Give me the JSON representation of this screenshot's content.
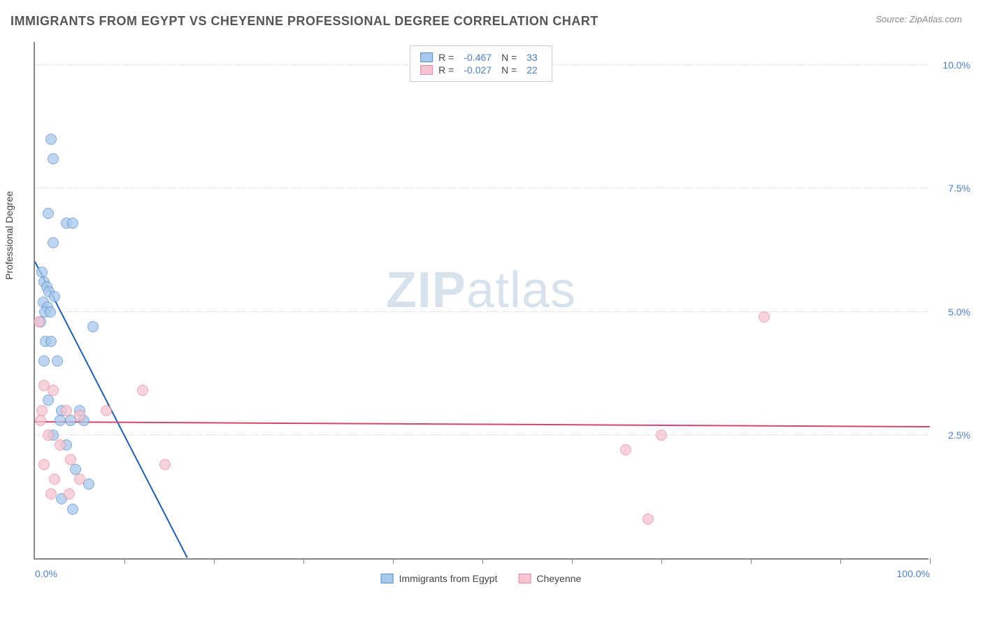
{
  "header": {
    "title": "IMMIGRANTS FROM EGYPT VS CHEYENNE PROFESSIONAL DEGREE CORRELATION CHART",
    "source": "Source: ZipAtlas.com"
  },
  "watermark": {
    "part1": "ZIP",
    "part2": "atlas"
  },
  "chart": {
    "type": "scatter",
    "y_axis_label": "Professional Degree",
    "xlim": [
      0,
      100
    ],
    "ylim": [
      0,
      10.5
    ],
    "x_min_label": "0.0%",
    "x_max_label": "100.0%",
    "y_ticks": [
      {
        "value": 2.5,
        "label": "2.5%"
      },
      {
        "value": 5.0,
        "label": "5.0%"
      },
      {
        "value": 7.5,
        "label": "7.5%"
      },
      {
        "value": 10.0,
        "label": "10.0%"
      }
    ],
    "x_tick_positions": [
      10,
      20,
      30,
      40,
      50,
      60,
      70,
      80,
      90,
      100
    ],
    "grid_color": "#dddddd",
    "axis_color": "#888888",
    "background_color": "#ffffff",
    "label_color": "#4a7fc4",
    "point_radius": 8,
    "series": [
      {
        "name": "Immigrants from Egypt",
        "fill_color": "#a8c8ec",
        "stroke_color": "#5a8fc8",
        "line_color": "#1f5fa8",
        "r_value": "-0.467",
        "n_value": "33",
        "trend": {
          "x1": 0,
          "y1": 6.0,
          "x2": 17,
          "y2": 0
        },
        "points": [
          {
            "x": 1.8,
            "y": 8.5
          },
          {
            "x": 2.0,
            "y": 8.1
          },
          {
            "x": 1.5,
            "y": 7.0
          },
          {
            "x": 3.5,
            "y": 6.8
          },
          {
            "x": 4.2,
            "y": 6.8
          },
          {
            "x": 2.0,
            "y": 6.4
          },
          {
            "x": 0.8,
            "y": 5.8
          },
          {
            "x": 1.0,
            "y": 5.6
          },
          {
            "x": 1.3,
            "y": 5.5
          },
          {
            "x": 1.6,
            "y": 5.4
          },
          {
            "x": 2.2,
            "y": 5.3
          },
          {
            "x": 0.9,
            "y": 5.2
          },
          {
            "x": 1.4,
            "y": 5.1
          },
          {
            "x": 1.1,
            "y": 5.0
          },
          {
            "x": 1.7,
            "y": 5.0
          },
          {
            "x": 0.6,
            "y": 4.8
          },
          {
            "x": 6.5,
            "y": 4.7
          },
          {
            "x": 1.2,
            "y": 4.4
          },
          {
            "x": 1.8,
            "y": 4.4
          },
          {
            "x": 1.0,
            "y": 4.0
          },
          {
            "x": 2.5,
            "y": 4.0
          },
          {
            "x": 1.5,
            "y": 3.2
          },
          {
            "x": 3.0,
            "y": 3.0
          },
          {
            "x": 5.0,
            "y": 3.0
          },
          {
            "x": 2.8,
            "y": 2.8
          },
          {
            "x": 4.0,
            "y": 2.8
          },
          {
            "x": 5.5,
            "y": 2.8
          },
          {
            "x": 2.0,
            "y": 2.5
          },
          {
            "x": 3.5,
            "y": 2.3
          },
          {
            "x": 4.5,
            "y": 1.8
          },
          {
            "x": 6.0,
            "y": 1.5
          },
          {
            "x": 3.0,
            "y": 1.2
          },
          {
            "x": 4.2,
            "y": 1.0
          }
        ]
      },
      {
        "name": "Cheyenne",
        "fill_color": "#f4c4d0",
        "stroke_color": "#e88aa4",
        "line_color": "#d1486c",
        "r_value": "-0.027",
        "n_value": "22",
        "trend": {
          "x1": 0,
          "y1": 2.75,
          "x2": 100,
          "y2": 2.65
        },
        "points": [
          {
            "x": 0.5,
            "y": 4.8
          },
          {
            "x": 1.0,
            "y": 3.5
          },
          {
            "x": 2.0,
            "y": 3.4
          },
          {
            "x": 0.8,
            "y": 3.0
          },
          {
            "x": 3.5,
            "y": 3.0
          },
          {
            "x": 5.0,
            "y": 2.9
          },
          {
            "x": 12.0,
            "y": 3.4
          },
          {
            "x": 8.0,
            "y": 3.0
          },
          {
            "x": 0.6,
            "y": 2.8
          },
          {
            "x": 1.5,
            "y": 2.5
          },
          {
            "x": 2.8,
            "y": 2.3
          },
          {
            "x": 4.0,
            "y": 2.0
          },
          {
            "x": 1.0,
            "y": 1.9
          },
          {
            "x": 2.2,
            "y": 1.6
          },
          {
            "x": 5.0,
            "y": 1.6
          },
          {
            "x": 14.5,
            "y": 1.9
          },
          {
            "x": 1.8,
            "y": 1.3
          },
          {
            "x": 3.8,
            "y": 1.3
          },
          {
            "x": 66.0,
            "y": 2.2
          },
          {
            "x": 70.0,
            "y": 2.5
          },
          {
            "x": 68.5,
            "y": 0.8
          },
          {
            "x": 81.5,
            "y": 4.9
          }
        ]
      }
    ]
  },
  "legend_top": {
    "r_label": "R =",
    "n_label": "N ="
  },
  "legend_bottom": {
    "item1": "Immigrants from Egypt",
    "item2": "Cheyenne"
  }
}
